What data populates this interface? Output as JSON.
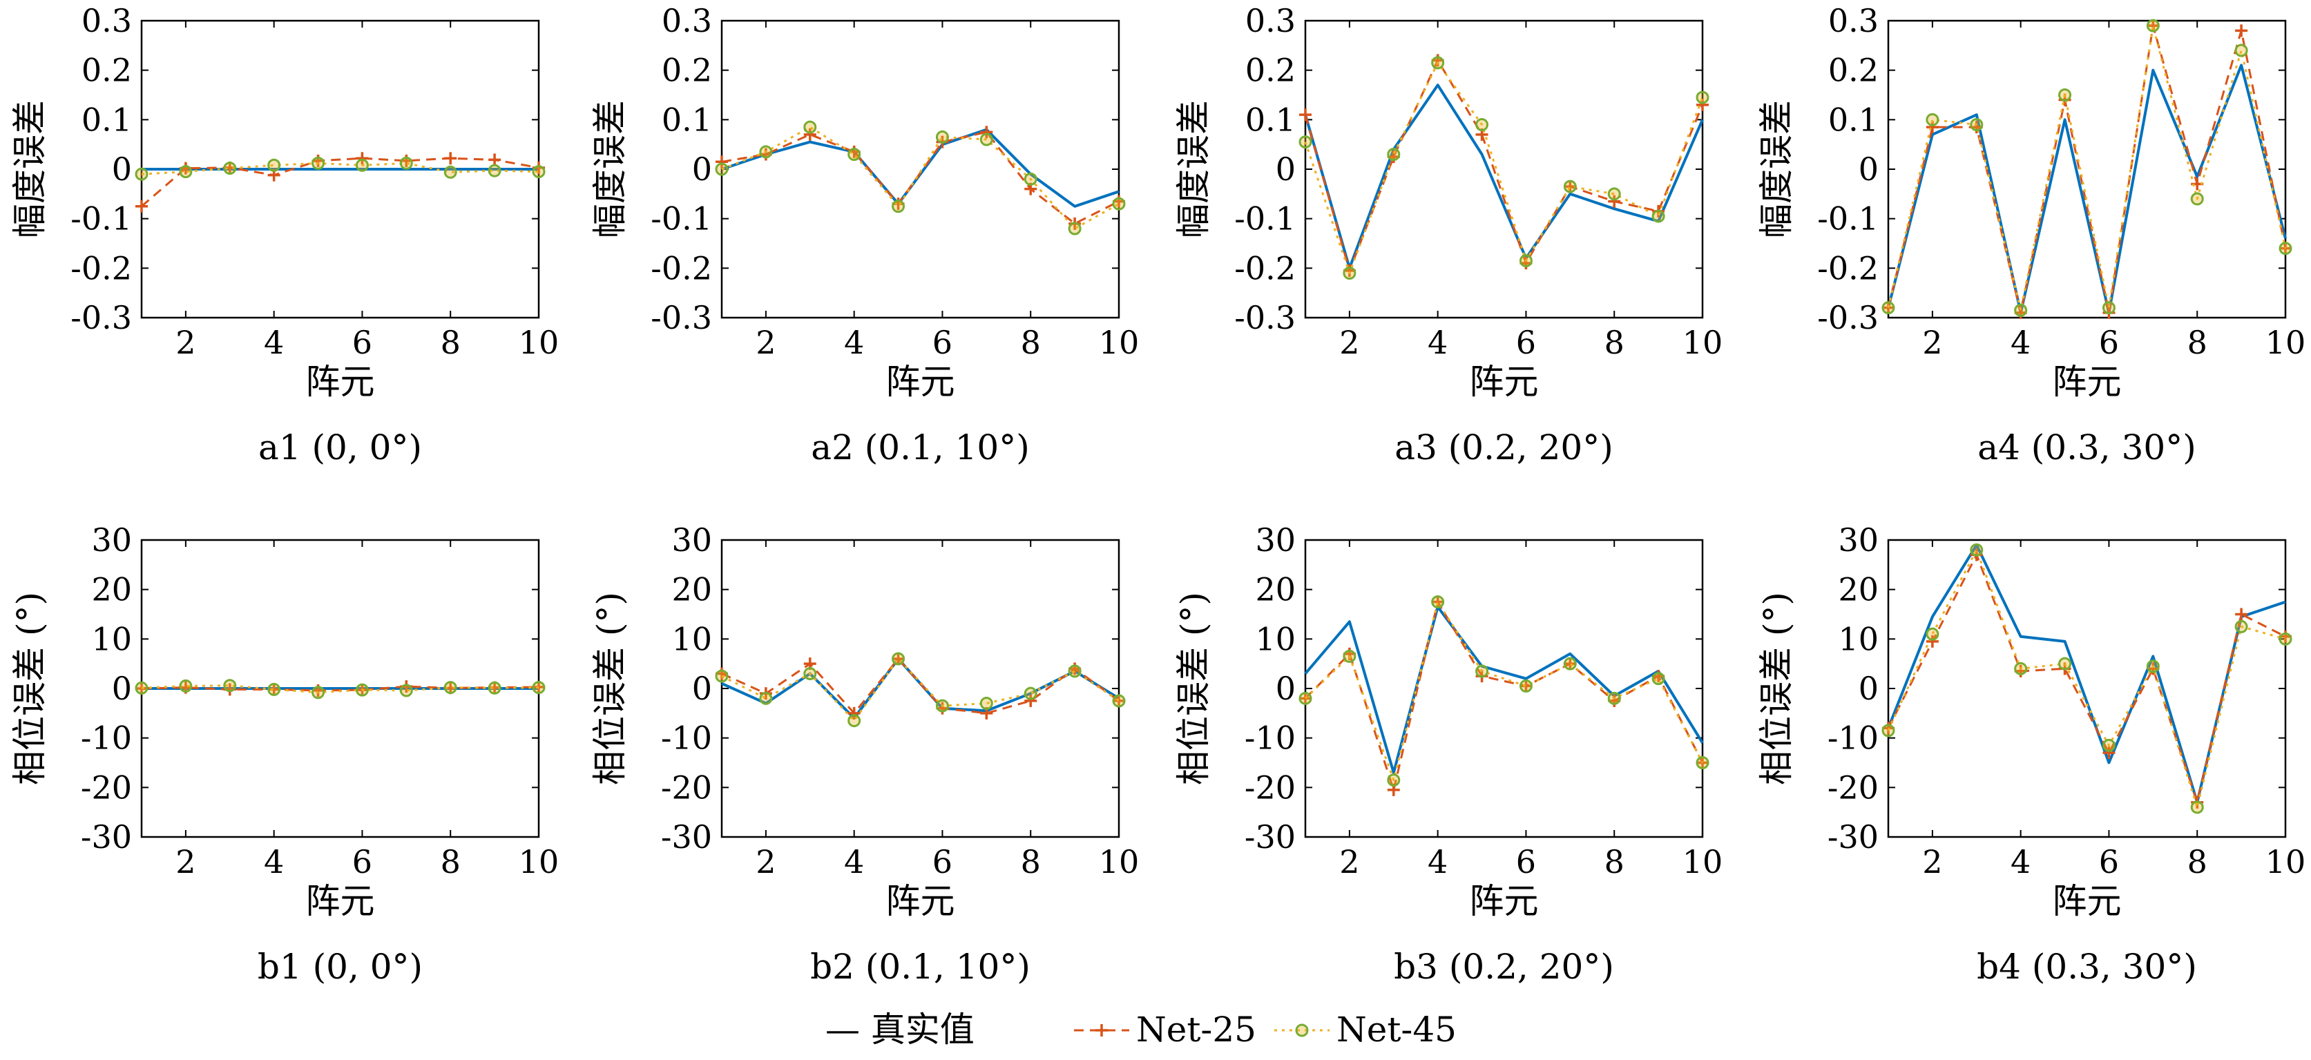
{
  "legend": [
    {
      "label": "— 真实值",
      "series_index": 0
    },
    {
      "label": "Net-25",
      "series_index": 1
    },
    {
      "label": "Net-45",
      "series_index": 2
    }
  ],
  "series_styles": [
    {
      "name": "真实值",
      "color": "#0072BD",
      "dash": "",
      "marker": "none"
    },
    {
      "name": "Net-25",
      "color": "#D95319",
      "dash": "14,9",
      "marker": "plus",
      "marker_color": "#D95319"
    },
    {
      "name": "Net-45",
      "color": "#EDB120",
      "dash": "4,7",
      "marker": "circle",
      "marker_color": "#77AC30"
    }
  ],
  "chart_data": [
    {
      "type": "line",
      "caption": "a1 (0, 0°)",
      "xlabel": "阵元",
      "ylabel": "幅度误差",
      "x": [
        1,
        2,
        3,
        4,
        5,
        6,
        7,
        8,
        9,
        10
      ],
      "xlim": [
        1,
        10
      ],
      "ylim": [
        -0.3,
        0.3
      ],
      "xticks": [
        "2",
        "4",
        "6",
        "8",
        "10"
      ],
      "yticks": [
        "-0.3",
        "-0.2",
        "-0.1",
        "0",
        "0.1",
        "0.2",
        "0.3"
      ],
      "series": [
        {
          "name": "真实值",
          "values": [
            0,
            0,
            0,
            0,
            0,
            0,
            0,
            0,
            0,
            0
          ]
        },
        {
          "name": "Net-25",
          "values": [
            -0.075,
            0.002,
            0.003,
            -0.012,
            0.017,
            0.022,
            0.017,
            0.022,
            0.019,
            0.003
          ]
        },
        {
          "name": "Net-45",
          "values": [
            -0.01,
            -0.005,
            0.002,
            0.008,
            0.012,
            0.008,
            0.012,
            -0.006,
            -0.003,
            -0.005
          ]
        }
      ]
    },
    {
      "type": "line",
      "caption": "a2 (0.1, 10°)",
      "xlabel": "阵元",
      "ylabel": "幅度误差",
      "x": [
        1,
        2,
        3,
        4,
        5,
        6,
        7,
        8,
        9,
        10
      ],
      "xlim": [
        1,
        10
      ],
      "ylim": [
        -0.3,
        0.3
      ],
      "xticks": [
        "2",
        "4",
        "6",
        "8",
        "10"
      ],
      "yticks": [
        "-0.3",
        "-0.2",
        "-0.1",
        "0",
        "0.1",
        "0.2",
        "0.3"
      ],
      "series": [
        {
          "name": "真实值",
          "values": [
            0.0,
            0.03,
            0.055,
            0.035,
            -0.07,
            0.05,
            0.08,
            -0.01,
            -0.075,
            -0.045
          ]
        },
        {
          "name": "Net-25",
          "values": [
            0.015,
            0.03,
            0.07,
            0.035,
            -0.07,
            0.055,
            0.075,
            -0.04,
            -0.11,
            -0.065
          ]
        },
        {
          "name": "Net-45",
          "values": [
            0.0,
            0.035,
            0.085,
            0.03,
            -0.075,
            0.065,
            0.06,
            -0.02,
            -0.12,
            -0.07
          ]
        }
      ]
    },
    {
      "type": "line",
      "caption": "a3 (0.2, 20°)",
      "xlabel": "阵元",
      "ylabel": "幅度误差",
      "x": [
        1,
        2,
        3,
        4,
        5,
        6,
        7,
        8,
        9,
        10
      ],
      "xlim": [
        1,
        10
      ],
      "ylim": [
        -0.3,
        0.3
      ],
      "xticks": [
        "2",
        "4",
        "6",
        "8",
        "10"
      ],
      "yticks": [
        "-0.3",
        "-0.2",
        "-0.1",
        "0",
        "0.1",
        "0.2",
        "0.3"
      ],
      "series": [
        {
          "name": "真实值",
          "values": [
            0.11,
            -0.2,
            0.04,
            0.17,
            0.03,
            -0.18,
            -0.05,
            -0.08,
            -0.105,
            0.1
          ]
        },
        {
          "name": "Net-25",
          "values": [
            0.11,
            -0.205,
            0.025,
            0.22,
            0.07,
            -0.19,
            -0.035,
            -0.065,
            -0.085,
            0.13
          ]
        },
        {
          "name": "Net-45",
          "values": [
            0.055,
            -0.21,
            0.03,
            0.215,
            0.09,
            -0.185,
            -0.035,
            -0.05,
            -0.095,
            0.145
          ]
        }
      ]
    },
    {
      "type": "line",
      "caption": "a4 (0.3, 30°)",
      "xlabel": "阵元",
      "ylabel": "幅度误差",
      "x": [
        1,
        2,
        3,
        4,
        5,
        6,
        7,
        8,
        9,
        10
      ],
      "xlim": [
        1,
        10
      ],
      "ylim": [
        -0.3,
        0.3
      ],
      "xticks": [
        "2",
        "4",
        "6",
        "8",
        "10"
      ],
      "yticks": [
        "-0.3",
        "-0.2",
        "-0.1",
        "0",
        "0.1",
        "0.2",
        "0.3"
      ],
      "series": [
        {
          "name": "真实值",
          "values": [
            -0.28,
            0.07,
            0.11,
            -0.29,
            0.1,
            -0.29,
            0.2,
            -0.015,
            0.21,
            -0.14
          ]
        },
        {
          "name": "Net-25",
          "values": [
            -0.28,
            0.085,
            0.085,
            -0.29,
            0.14,
            -0.29,
            0.29,
            -0.03,
            0.28,
            -0.16
          ]
        },
        {
          "name": "Net-45",
          "values": [
            -0.28,
            0.1,
            0.09,
            -0.285,
            0.15,
            -0.28,
            0.29,
            -0.06,
            0.24,
            -0.16
          ]
        }
      ]
    },
    {
      "type": "line",
      "caption": "b1 (0, 0°)",
      "xlabel": "阵元",
      "ylabel": "相位误差 (°)",
      "x": [
        1,
        2,
        3,
        4,
        5,
        6,
        7,
        8,
        9,
        10
      ],
      "xlim": [
        1,
        10
      ],
      "ylim": [
        -30,
        30
      ],
      "xticks": [
        "2",
        "4",
        "6",
        "8",
        "10"
      ],
      "yticks": [
        "-30",
        "-20",
        "-10",
        "0",
        "10",
        "20",
        "30"
      ],
      "series": [
        {
          "name": "真实值",
          "values": [
            0,
            0,
            0,
            0,
            0,
            0,
            0,
            0,
            0,
            0
          ]
        },
        {
          "name": "Net-25",
          "values": [
            0,
            0.2,
            -0.2,
            -0.2,
            -0.4,
            -0.3,
            0.4,
            0.1,
            0.2,
            0.3
          ]
        },
        {
          "name": "Net-45",
          "values": [
            0.1,
            0.5,
            0.6,
            -0.2,
            -0.8,
            -0.3,
            -0.4,
            0.2,
            0.1,
            0.2
          ]
        }
      ]
    },
    {
      "type": "line",
      "caption": "b2 (0.1, 10°)",
      "xlabel": "阵元",
      "ylabel": "相位误差 (°)",
      "x": [
        1,
        2,
        3,
        4,
        5,
        6,
        7,
        8,
        9,
        10
      ],
      "xlim": [
        1,
        10
      ],
      "ylim": [
        -30,
        30
      ],
      "xticks": [
        "2",
        "4",
        "6",
        "8",
        "10"
      ],
      "yticks": [
        "-30",
        "-20",
        "-10",
        "0",
        "10",
        "20",
        "30"
      ],
      "series": [
        {
          "name": "真实值",
          "values": [
            1,
            -3,
            3,
            -6,
            6,
            -4,
            -4.5,
            -1,
            3.5,
            -2
          ]
        },
        {
          "name": "Net-25",
          "values": [
            3,
            -1,
            5,
            -5,
            6,
            -4,
            -5,
            -2.5,
            4,
            -2.5
          ]
        },
        {
          "name": "Net-45",
          "values": [
            2.5,
            -2,
            3,
            -6.5,
            6,
            -3.5,
            -3,
            -1,
            3.5,
            -2.5
          ]
        }
      ]
    },
    {
      "type": "line",
      "caption": "b3 (0.2, 20°)",
      "xlabel": "阵元",
      "ylabel": "相位误差 (°)",
      "x": [
        1,
        2,
        3,
        4,
        5,
        6,
        7,
        8,
        9,
        10
      ],
      "xlim": [
        1,
        10
      ],
      "ylim": [
        -30,
        30
      ],
      "xticks": [
        "2",
        "4",
        "6",
        "8",
        "10"
      ],
      "yticks": [
        "-30",
        "-20",
        "-10",
        "0",
        "10",
        "20",
        "30"
      ],
      "series": [
        {
          "name": "真实值",
          "values": [
            3,
            13.5,
            -17,
            16.5,
            4.5,
            2,
            7,
            -1.5,
            3.5,
            -11
          ]
        },
        {
          "name": "Net-25",
          "values": [
            -2,
            7,
            -20.5,
            17.5,
            2.5,
            0.5,
            5,
            -2.5,
            2.5,
            -15
          ]
        },
        {
          "name": "Net-45",
          "values": [
            -2,
            6.5,
            -18.5,
            17.5,
            3.5,
            0.5,
            5,
            -2,
            2,
            -15
          ]
        }
      ]
    },
    {
      "type": "line",
      "caption": "b4 (0.3, 30°)",
      "xlabel": "阵元",
      "ylabel": "相位误差 (°)",
      "x": [
        1,
        2,
        3,
        4,
        5,
        6,
        7,
        8,
        9,
        10
      ],
      "xlim": [
        1,
        10
      ],
      "ylim": [
        -30,
        30
      ],
      "xticks": [
        "2",
        "4",
        "6",
        "8",
        "10"
      ],
      "yticks": [
        "-30",
        "-20",
        "-10",
        "0",
        "10",
        "20",
        "30"
      ],
      "series": [
        {
          "name": "真实值",
          "values": [
            -8,
            14.5,
            29,
            10.5,
            9.5,
            -15,
            6.5,
            -23,
            14.5,
            17.5
          ]
        },
        {
          "name": "Net-25",
          "values": [
            -8,
            9.5,
            27,
            3.5,
            4,
            -13,
            4,
            -23,
            15,
            10.5
          ]
        },
        {
          "name": "Net-45",
          "values": [
            -8.5,
            11,
            28,
            4,
            5,
            -11.5,
            4.5,
            -24,
            12.5,
            10
          ]
        }
      ]
    }
  ]
}
